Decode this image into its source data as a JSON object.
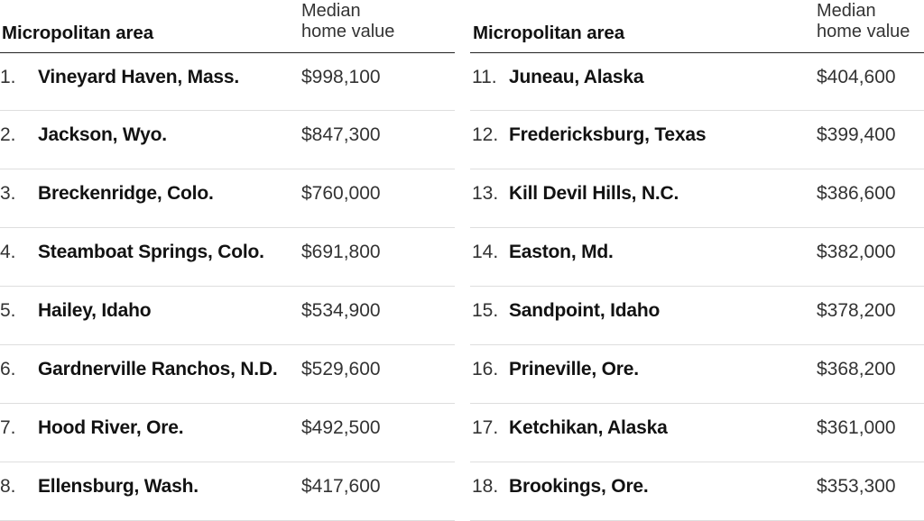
{
  "headers": {
    "area": "Micropolitan area",
    "value_line1": "Median",
    "value_line2": "home value"
  },
  "chart_data": {
    "type": "table",
    "columns": [
      "Micropolitan area",
      "Median home value"
    ],
    "rows": [
      {
        "rank": "1.",
        "name": "Vineyard Haven, Mass.",
        "value": "$998,100"
      },
      {
        "rank": "2.",
        "name": "Jackson, Wyo.",
        "value": "$847,300"
      },
      {
        "rank": "3.",
        "name": "Breckenridge, Colo.",
        "value": "$760,000"
      },
      {
        "rank": "4.",
        "name": "Steamboat Springs, Colo.",
        "value": "$691,800"
      },
      {
        "rank": "5.",
        "name": "Hailey, Idaho",
        "value": "$534,900"
      },
      {
        "rank": "6.",
        "name": "Gardnerville Ranchos, N.D.",
        "value": "$529,600"
      },
      {
        "rank": "7.",
        "name": "Hood River, Ore.",
        "value": "$492,500"
      },
      {
        "rank": "8.",
        "name": "Ellensburg, Wash.",
        "value": "$417,600"
      },
      {
        "rank": "11.",
        "name": "Juneau, Alaska",
        "value": "$404,600"
      },
      {
        "rank": "12.",
        "name": "Fredericksburg, Texas",
        "value": "$399,400"
      },
      {
        "rank": "13.",
        "name": "Kill Devil Hills, N.C.",
        "value": "$386,600"
      },
      {
        "rank": "14.",
        "name": "Easton, Md.",
        "value": "$382,000"
      },
      {
        "rank": "15.",
        "name": "Sandpoint, Idaho",
        "value": "$378,200"
      },
      {
        "rank": "16.",
        "name": "Prineville, Ore.",
        "value": "$368,200"
      },
      {
        "rank": "17.",
        "name": "Ketchikan, Alaska",
        "value": "$361,000"
      },
      {
        "rank": "18.",
        "name": "Brookings, Ore.",
        "value": "$353,300"
      }
    ]
  }
}
